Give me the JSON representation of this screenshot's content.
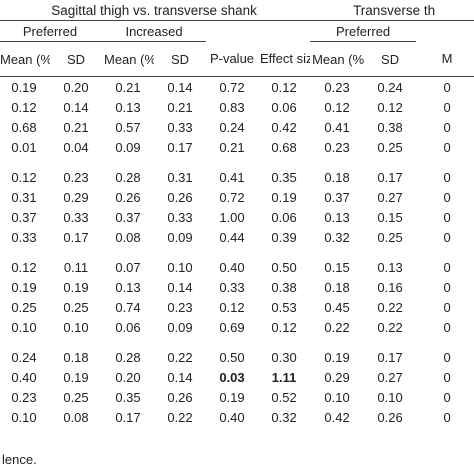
{
  "header": {
    "group1": "Sagittal thigh vs. transverse shank",
    "group2": "Transverse th",
    "subgroups": [
      "Preferred",
      "Increased",
      "Preferred"
    ],
    "columns": [
      "Mean (%)",
      "SD",
      "Mean (%)",
      "SD",
      "P-value",
      "Effect size",
      "Mean (%)",
      "SD",
      "M"
    ]
  },
  "table": {
    "blocks": [
      [
        [
          "0.19",
          "0.20",
          "0.21",
          "0.14",
          "0.72",
          "0.12",
          "0.23",
          "0.24",
          "0"
        ],
        [
          "0.12",
          "0.14",
          "0.13",
          "0.21",
          "0.83",
          "0.06",
          "0.12",
          "0.12",
          "0"
        ],
        [
          "0.68",
          "0.21",
          "0.57",
          "0.33",
          "0.24",
          "0.42",
          "0.41",
          "0.38",
          "0"
        ],
        [
          "0.01",
          "0.04",
          "0.09",
          "0.17",
          "0.21",
          "0.68",
          "0.23",
          "0.25",
          "0"
        ]
      ],
      [
        [
          "0.12",
          "0.23",
          "0.28",
          "0.31",
          "0.41",
          "0.35",
          "0.18",
          "0.17",
          "0"
        ],
        [
          "0.31",
          "0.29",
          "0.26",
          "0.26",
          "0.72",
          "0.19",
          "0.37",
          "0.27",
          "0"
        ],
        [
          "0.37",
          "0.33",
          "0.37",
          "0.33",
          "1.00",
          "0.06",
          "0.13",
          "0.15",
          "0"
        ],
        [
          "0.33",
          "0.17",
          "0.08",
          "0.09",
          "0.44",
          "0.39",
          "0.32",
          "0.25",
          "0"
        ]
      ],
      [
        [
          "0.12",
          "0.11",
          "0.07",
          "0.10",
          "0.40",
          "0.50",
          "0.15",
          "0.13",
          "0"
        ],
        [
          "0.19",
          "0.19",
          "0.13",
          "0.14",
          "0.33",
          "0.38",
          "0.18",
          "0.16",
          "0"
        ],
        [
          "0.25",
          "0.25",
          "0.74",
          "0.23",
          "0.12",
          "0.53",
          "0.45",
          "0.22",
          "0"
        ],
        [
          "0.10",
          "0.10",
          "0.06",
          "0.09",
          "0.69",
          "0.12",
          "0.22",
          "0.22",
          "0"
        ]
      ],
      [
        [
          "0.24",
          "0.18",
          "0.28",
          "0.22",
          "0.50",
          "0.30",
          "0.19",
          "0.17",
          "0"
        ],
        [
          "0.40",
          "0.19",
          "0.20",
          "0.14",
          "0.03",
          "1.11",
          "0.29",
          "0.27",
          "0"
        ],
        [
          "0.23",
          "0.25",
          "0.35",
          "0.26",
          "0.19",
          "0.52",
          "0.10",
          "0.10",
          "0"
        ],
        [
          "0.10",
          "0.08",
          "0.17",
          "0.22",
          "0.40",
          "0.32",
          "0.42",
          "0.26",
          "0"
        ]
      ]
    ],
    "bold": [
      "3.1.4",
      "3.1.5"
    ]
  },
  "footnote": "lence."
}
